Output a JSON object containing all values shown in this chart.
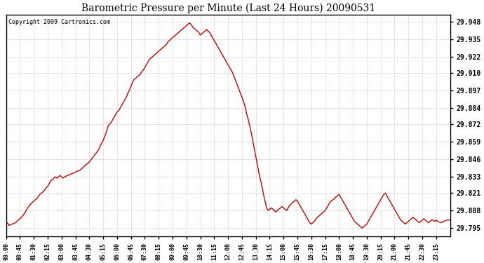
{
  "title": "Barometric Pressure per Minute (Last 24 Hours) 20090531",
  "copyright": "Copyright 2009 Cartronics.com",
  "background_color": "#ffffff",
  "plot_bg_color": "#ffffff",
  "grid_color": "#cccccc",
  "line_color": "#cc0000",
  "yticks": [
    29.795,
    29.808,
    29.821,
    29.833,
    29.846,
    29.859,
    29.872,
    29.884,
    29.897,
    29.91,
    29.922,
    29.935,
    29.948
  ],
  "ylim": [
    29.789,
    29.953
  ],
  "xtick_labels": [
    "00:00",
    "00:45",
    "01:30",
    "02:15",
    "03:00",
    "03:45",
    "04:30",
    "05:15",
    "06:00",
    "06:45",
    "07:30",
    "08:15",
    "09:00",
    "09:45",
    "10:30",
    "11:15",
    "12:00",
    "12:45",
    "13:30",
    "14:15",
    "15:00",
    "15:45",
    "16:30",
    "17:15",
    "18:00",
    "18:45",
    "19:30",
    "20:15",
    "21:00",
    "21:45",
    "22:30",
    "23:15"
  ],
  "x_values": [
    0,
    45,
    90,
    135,
    180,
    225,
    270,
    315,
    360,
    405,
    450,
    495,
    540,
    585,
    630,
    675,
    720,
    765,
    810,
    855,
    900,
    945,
    990,
    1035,
    1080,
    1125,
    1170,
    1215,
    1260,
    1305,
    1350,
    1395
  ],
  "pressure_data": [
    [
      0,
      29.8
    ],
    [
      10,
      29.797
    ],
    [
      20,
      29.798
    ],
    [
      30,
      29.799
    ],
    [
      40,
      29.801
    ],
    [
      50,
      29.803
    ],
    [
      60,
      29.806
    ],
    [
      70,
      29.81
    ],
    [
      80,
      29.813
    ],
    [
      90,
      29.815
    ],
    [
      100,
      29.817
    ],
    [
      110,
      29.82
    ],
    [
      120,
      29.822
    ],
    [
      125,
      29.823
    ],
    [
      130,
      29.825
    ],
    [
      135,
      29.826
    ],
    [
      140,
      29.828
    ],
    [
      145,
      29.83
    ],
    [
      150,
      29.831
    ],
    [
      155,
      29.832
    ],
    [
      160,
      29.833
    ],
    [
      165,
      29.832
    ],
    [
      170,
      29.833
    ],
    [
      175,
      29.834
    ],
    [
      180,
      29.833
    ],
    [
      185,
      29.832
    ],
    [
      190,
      29.833
    ],
    [
      200,
      29.834
    ],
    [
      210,
      29.835
    ],
    [
      220,
      29.836
    ],
    [
      230,
      29.837
    ],
    [
      240,
      29.838
    ],
    [
      250,
      29.84
    ],
    [
      260,
      29.842
    ],
    [
      270,
      29.844
    ],
    [
      280,
      29.847
    ],
    [
      290,
      29.85
    ],
    [
      300,
      29.853
    ],
    [
      310,
      29.858
    ],
    [
      315,
      29.86
    ],
    [
      320,
      29.863
    ],
    [
      325,
      29.866
    ],
    [
      330,
      29.87
    ],
    [
      335,
      29.872
    ],
    [
      340,
      29.873
    ],
    [
      345,
      29.875
    ],
    [
      350,
      29.877
    ],
    [
      355,
      29.879
    ],
    [
      360,
      29.881
    ],
    [
      365,
      29.882
    ],
    [
      370,
      29.884
    ],
    [
      375,
      29.886
    ],
    [
      380,
      29.888
    ],
    [
      385,
      29.89
    ],
    [
      390,
      29.892
    ],
    [
      395,
      29.895
    ],
    [
      400,
      29.897
    ],
    [
      405,
      29.9
    ],
    [
      410,
      29.903
    ],
    [
      415,
      29.905
    ],
    [
      420,
      29.906
    ],
    [
      425,
      29.907
    ],
    [
      430,
      29.908
    ],
    [
      435,
      29.909
    ],
    [
      440,
      29.911
    ],
    [
      445,
      29.912
    ],
    [
      450,
      29.914
    ],
    [
      455,
      29.916
    ],
    [
      460,
      29.918
    ],
    [
      465,
      29.92
    ],
    [
      470,
      29.921
    ],
    [
      475,
      29.922
    ],
    [
      480,
      29.923
    ],
    [
      485,
      29.924
    ],
    [
      490,
      29.925
    ],
    [
      495,
      29.926
    ],
    [
      500,
      29.927
    ],
    [
      505,
      29.928
    ],
    [
      510,
      29.929
    ],
    [
      515,
      29.93
    ],
    [
      520,
      29.931
    ],
    [
      525,
      29.933
    ],
    [
      530,
      29.934
    ],
    [
      535,
      29.935
    ],
    [
      540,
      29.936
    ],
    [
      545,
      29.937
    ],
    [
      550,
      29.938
    ],
    [
      555,
      29.939
    ],
    [
      560,
      29.94
    ],
    [
      565,
      29.941
    ],
    [
      570,
      29.942
    ],
    [
      575,
      29.943
    ],
    [
      580,
      29.944
    ],
    [
      585,
      29.945
    ],
    [
      590,
      29.946
    ],
    [
      595,
      29.947
    ],
    [
      600,
      29.946
    ],
    [
      605,
      29.944
    ],
    [
      610,
      29.943
    ],
    [
      615,
      29.942
    ],
    [
      620,
      29.941
    ],
    [
      625,
      29.94
    ],
    [
      630,
      29.938
    ],
    [
      635,
      29.939
    ],
    [
      640,
      29.94
    ],
    [
      645,
      29.941
    ],
    [
      650,
      29.942
    ],
    [
      655,
      29.941
    ],
    [
      660,
      29.94
    ],
    [
      665,
      29.938
    ],
    [
      670,
      29.936
    ],
    [
      675,
      29.934
    ],
    [
      680,
      29.932
    ],
    [
      685,
      29.93
    ],
    [
      690,
      29.928
    ],
    [
      695,
      29.926
    ],
    [
      700,
      29.924
    ],
    [
      705,
      29.922
    ],
    [
      710,
      29.92
    ],
    [
      715,
      29.918
    ],
    [
      720,
      29.916
    ],
    [
      725,
      29.914
    ],
    [
      730,
      29.912
    ],
    [
      735,
      29.91
    ],
    [
      740,
      29.907
    ],
    [
      745,
      29.904
    ],
    [
      750,
      29.901
    ],
    [
      755,
      29.898
    ],
    [
      760,
      29.895
    ],
    [
      765,
      29.892
    ],
    [
      770,
      29.889
    ],
    [
      775,
      29.885
    ],
    [
      780,
      29.88
    ],
    [
      785,
      29.876
    ],
    [
      790,
      29.871
    ],
    [
      795,
      29.866
    ],
    [
      800,
      29.86
    ],
    [
      805,
      29.854
    ],
    [
      810,
      29.848
    ],
    [
      815,
      29.842
    ],
    [
      820,
      29.836
    ],
    [
      825,
      29.831
    ],
    [
      830,
      29.826
    ],
    [
      835,
      29.82
    ],
    [
      840,
      29.815
    ],
    [
      845,
      29.81
    ],
    [
      850,
      29.808
    ],
    [
      855,
      29.809
    ],
    [
      860,
      29.81
    ],
    [
      865,
      29.809
    ],
    [
      870,
      29.808
    ],
    [
      875,
      29.807
    ],
    [
      880,
      29.808
    ],
    [
      885,
      29.809
    ],
    [
      890,
      29.81
    ],
    [
      895,
      29.811
    ],
    [
      900,
      29.81
    ],
    [
      905,
      29.809
    ],
    [
      910,
      29.808
    ],
    [
      915,
      29.81
    ],
    [
      920,
      29.812
    ],
    [
      925,
      29.813
    ],
    [
      930,
      29.814
    ],
    [
      935,
      29.815
    ],
    [
      940,
      29.816
    ],
    [
      945,
      29.815
    ],
    [
      950,
      29.813
    ],
    [
      955,
      29.811
    ],
    [
      960,
      29.809
    ],
    [
      965,
      29.807
    ],
    [
      970,
      29.805
    ],
    [
      975,
      29.803
    ],
    [
      980,
      29.801
    ],
    [
      985,
      29.799
    ],
    [
      990,
      29.798
    ],
    [
      995,
      29.799
    ],
    [
      1000,
      29.8
    ],
    [
      1005,
      29.802
    ],
    [
      1010,
      29.803
    ],
    [
      1015,
      29.804
    ],
    [
      1020,
      29.805
    ],
    [
      1025,
      29.806
    ],
    [
      1030,
      29.807
    ],
    [
      1035,
      29.808
    ],
    [
      1040,
      29.81
    ],
    [
      1045,
      29.812
    ],
    [
      1050,
      29.814
    ],
    [
      1055,
      29.815
    ],
    [
      1060,
      29.816
    ],
    [
      1065,
      29.817
    ],
    [
      1070,
      29.818
    ],
    [
      1075,
      29.819
    ],
    [
      1080,
      29.82
    ],
    [
      1085,
      29.818
    ],
    [
      1090,
      29.816
    ],
    [
      1095,
      29.814
    ],
    [
      1100,
      29.812
    ],
    [
      1105,
      29.81
    ],
    [
      1110,
      29.808
    ],
    [
      1115,
      29.806
    ],
    [
      1120,
      29.804
    ],
    [
      1125,
      29.802
    ],
    [
      1130,
      29.8
    ],
    [
      1135,
      29.799
    ],
    [
      1140,
      29.798
    ],
    [
      1145,
      29.797
    ],
    [
      1150,
      29.796
    ],
    [
      1155,
      29.795
    ],
    [
      1160,
      29.796
    ],
    [
      1165,
      29.797
    ],
    [
      1170,
      29.798
    ],
    [
      1175,
      29.8
    ],
    [
      1180,
      29.802
    ],
    [
      1185,
      29.804
    ],
    [
      1190,
      29.806
    ],
    [
      1195,
      29.808
    ],
    [
      1200,
      29.81
    ],
    [
      1205,
      29.812
    ],
    [
      1210,
      29.814
    ],
    [
      1215,
      29.816
    ],
    [
      1220,
      29.818
    ],
    [
      1225,
      29.82
    ],
    [
      1230,
      29.821
    ],
    [
      1235,
      29.819
    ],
    [
      1240,
      29.817
    ],
    [
      1245,
      29.815
    ],
    [
      1250,
      29.813
    ],
    [
      1255,
      29.811
    ],
    [
      1260,
      29.809
    ],
    [
      1265,
      29.807
    ],
    [
      1270,
      29.805
    ],
    [
      1275,
      29.803
    ],
    [
      1280,
      29.801
    ],
    [
      1285,
      29.8
    ],
    [
      1290,
      29.799
    ],
    [
      1295,
      29.798
    ],
    [
      1300,
      29.799
    ],
    [
      1305,
      29.8
    ],
    [
      1310,
      29.801
    ],
    [
      1315,
      29.802
    ],
    [
      1320,
      29.803
    ],
    [
      1325,
      29.802
    ],
    [
      1330,
      29.801
    ],
    [
      1335,
      29.8
    ],
    [
      1340,
      29.799
    ],
    [
      1345,
      29.8
    ],
    [
      1350,
      29.801
    ],
    [
      1355,
      29.802
    ],
    [
      1360,
      29.801
    ],
    [
      1365,
      29.8
    ],
    [
      1370,
      29.799
    ],
    [
      1375,
      29.8
    ],
    [
      1380,
      29.801
    ],
    [
      1385,
      29.801
    ],
    [
      1390,
      29.8
    ],
    [
      1395,
      29.801
    ],
    [
      1400,
      29.8
    ],
    [
      1410,
      29.799
    ],
    [
      1420,
      29.8
    ],
    [
      1430,
      29.801
    ],
    [
      1439,
      29.801
    ]
  ]
}
